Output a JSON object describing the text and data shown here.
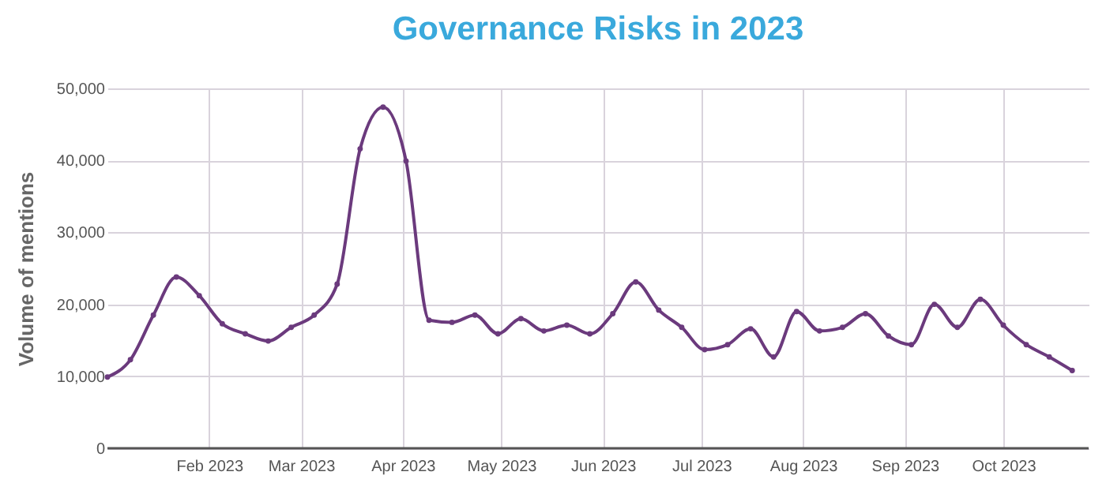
{
  "chart_data": {
    "type": "line",
    "title": "Governance Risks in 2023",
    "ylabel": "Volume of mentions",
    "x": [
      "2023-01-01",
      "2023-01-08",
      "2023-01-15",
      "2023-01-22",
      "2023-01-29",
      "2023-02-05",
      "2023-02-12",
      "2023-02-19",
      "2023-02-26",
      "2023-03-05",
      "2023-03-12",
      "2023-03-19",
      "2023-03-26",
      "2023-04-02",
      "2023-04-09",
      "2023-04-16",
      "2023-04-23",
      "2023-04-30",
      "2023-05-07",
      "2023-05-14",
      "2023-05-21",
      "2023-05-28",
      "2023-06-04",
      "2023-06-11",
      "2023-06-18",
      "2023-06-25",
      "2023-07-02",
      "2023-07-09",
      "2023-07-16",
      "2023-07-23",
      "2023-07-30",
      "2023-08-06",
      "2023-08-13",
      "2023-08-20",
      "2023-08-27",
      "2023-09-03",
      "2023-09-10",
      "2023-09-17",
      "2023-09-24",
      "2023-10-01",
      "2023-10-08",
      "2023-10-15",
      "2023-10-22"
    ],
    "series": [
      {
        "color": "#6b3a7d",
        "values": [
          9900,
          12300,
          18500,
          23800,
          21200,
          17300,
          15900,
          14900,
          16800,
          18500,
          22800,
          41600,
          47400,
          39900,
          17800,
          17500,
          18500,
          15900,
          18000,
          16300,
          17100,
          15900,
          18700,
          23100,
          19200,
          16800,
          13700,
          14400,
          16600,
          12700,
          19000,
          16300,
          16800,
          18700,
          15600,
          14400,
          20000,
          16800,
          20700,
          17100,
          14400,
          12700,
          10800
        ]
      }
    ],
    "xlim": [
      "2023-01-01",
      "2023-10-27"
    ],
    "xticks": [
      {
        "value": "2023-02-01",
        "label": "Feb 2023"
      },
      {
        "value": "2023-03-01",
        "label": "Mar 2023"
      },
      {
        "value": "2023-04-01",
        "label": "Apr 2023"
      },
      {
        "value": "2023-05-01",
        "label": "May 2023"
      },
      {
        "value": "2023-06-01",
        "label": "Jun 2023"
      },
      {
        "value": "2023-07-01",
        "label": "Jul 2023"
      },
      {
        "value": "2023-08-01",
        "label": "Aug 2023"
      },
      {
        "value": "2023-09-01",
        "label": "Sep 2023"
      },
      {
        "value": "2023-10-01",
        "label": "Oct 2023"
      }
    ],
    "ylim": [
      0,
      50000
    ],
    "yticks": [
      {
        "value": 0,
        "label": "0"
      },
      {
        "value": 10000,
        "label": "10,000"
      },
      {
        "value": 20000,
        "label": "20,000"
      },
      {
        "value": 30000,
        "label": "30,000"
      },
      {
        "value": 40000,
        "label": "40,000"
      },
      {
        "value": 50000,
        "label": "50,000"
      }
    ],
    "grid": true,
    "marker": "circle",
    "line_style": "solid"
  }
}
